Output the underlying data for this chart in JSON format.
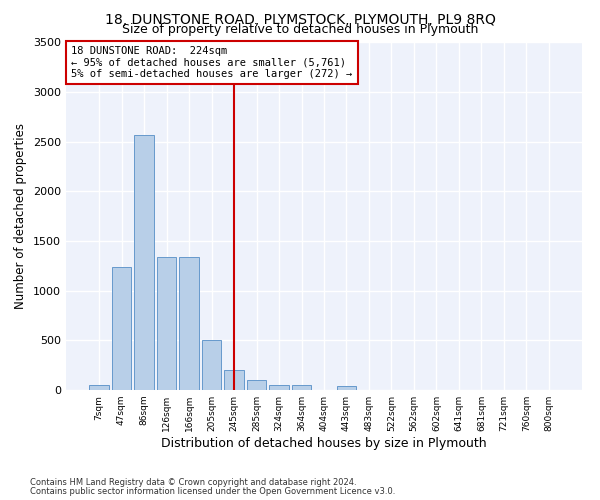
{
  "title": "18, DUNSTONE ROAD, PLYMSTOCK, PLYMOUTH, PL9 8RQ",
  "subtitle": "Size of property relative to detached houses in Plymouth",
  "xlabel": "Distribution of detached houses by size in Plymouth",
  "ylabel": "Number of detached properties",
  "categories": [
    "7sqm",
    "47sqm",
    "86sqm",
    "126sqm",
    "166sqm",
    "205sqm",
    "245sqm",
    "285sqm",
    "324sqm",
    "364sqm",
    "404sqm",
    "443sqm",
    "483sqm",
    "522sqm",
    "562sqm",
    "602sqm",
    "641sqm",
    "681sqm",
    "721sqm",
    "760sqm",
    "800sqm"
  ],
  "values": [
    50,
    1240,
    2570,
    1340,
    1340,
    500,
    200,
    100,
    55,
    50,
    5,
    40,
    5,
    5,
    5,
    5,
    0,
    0,
    0,
    0,
    0
  ],
  "bar_color": "#b8cfe8",
  "bar_edge_color": "#6699cc",
  "vline_x_index": 6,
  "vline_color": "#cc0000",
  "annotation_box_text": "18 DUNSTONE ROAD:  224sqm\n← 95% of detached houses are smaller (5,761)\n5% of semi-detached houses are larger (272) →",
  "annotation_box_color": "#cc0000",
  "annotation_text_fontsize": 7.5,
  "footnote1": "Contains HM Land Registry data © Crown copyright and database right 2024.",
  "footnote2": "Contains public sector information licensed under the Open Government Licence v3.0.",
  "ylim": [
    0,
    3500
  ],
  "yticks": [
    0,
    500,
    1000,
    1500,
    2000,
    2500,
    3000,
    3500
  ],
  "background_color": "#eef2fb",
  "grid_color": "#ffffff",
  "title_fontsize": 10,
  "subtitle_fontsize": 9,
  "xlabel_fontsize": 9,
  "ylabel_fontsize": 8.5
}
